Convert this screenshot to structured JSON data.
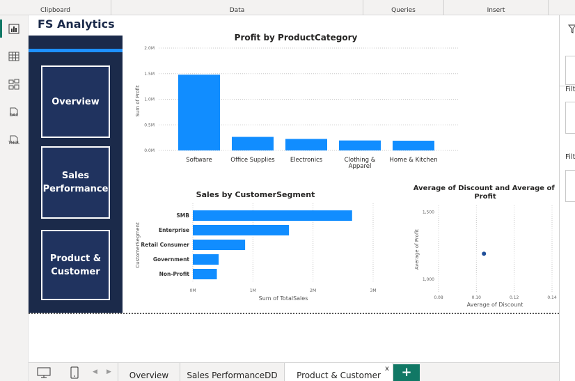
{
  "ribbon": {
    "groups": [
      "Clipboard",
      "Data",
      "Queries",
      "Insert"
    ]
  },
  "rail": {
    "icons": [
      "report-view-icon",
      "table-view-icon",
      "model-view-icon",
      "dax-query-icon",
      "tmdl-view-icon"
    ],
    "dax_label": "DAX",
    "tmdl_label": "TMDL"
  },
  "brand": {
    "title": "FS Analytics"
  },
  "nav": {
    "buttons": [
      "Overview",
      "Sales Performance",
      "Product & Customer"
    ]
  },
  "right_panel": {
    "label1": "Filt",
    "label2": "Filt"
  },
  "tabs": {
    "items": [
      "Overview",
      "Sales PerformanceDD",
      "Product & Customer"
    ],
    "close_glyph": "x",
    "add_glyph": "+"
  },
  "colors": {
    "bar": "#118DFF",
    "navy": "#1b2a4a",
    "accent": "#1e90ff",
    "tab_green": "#117865",
    "dot": "#1f4e99"
  },
  "chart_data": [
    {
      "type": "bar",
      "title": "Profit by ProductCategory",
      "ylabel": "Sum of Profit",
      "xlabel": "",
      "categories": [
        "Software",
        "Office Supplies",
        "Electronics",
        "Clothing & Apparel",
        "Home & Kitchen"
      ],
      "values": [
        1480000,
        265000,
        225000,
        195000,
        190000
      ],
      "yticks": [
        "0.0M",
        "0.5M",
        "1.0M",
        "1.5M",
        "2.0M"
      ],
      "ylim": [
        0,
        2000000
      ],
      "grid": true
    },
    {
      "type": "bar",
      "orientation": "horizontal",
      "title": "Sales by CustomerSegment",
      "xlabel": "Sum of TotalSales",
      "ylabel": "CustomerSegment",
      "categories": [
        "SMB",
        "Enterprise",
        "Retail Consumer",
        "Government",
        "Non-Profit"
      ],
      "values": [
        2650000,
        1600000,
        870000,
        430000,
        400000
      ],
      "xticks": [
        "0M",
        "1M",
        "2M",
        "3M"
      ],
      "xlim": [
        0,
        3000000
      ],
      "grid": true
    },
    {
      "type": "scatter",
      "title": "Average of Discount and Average of Profit",
      "xlabel": "Average of Discount",
      "ylabel": "Average of Profit",
      "points": [
        {
          "x": 0.104,
          "y": 1190
        }
      ],
      "xticks": [
        "0.08",
        "0.10",
        "0.12",
        "0.14"
      ],
      "yticks": [
        "1,000",
        "1,500"
      ],
      "xlim": [
        0.08,
        0.14
      ],
      "ylim": [
        900,
        1550
      ],
      "grid": true
    }
  ]
}
